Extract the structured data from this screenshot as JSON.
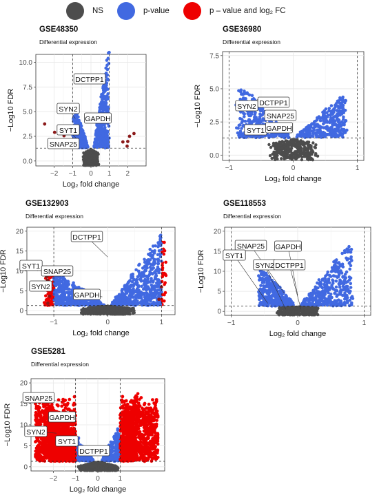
{
  "legend": {
    "items": [
      {
        "label": "NS",
        "color": "#4d4d4d"
      },
      {
        "label": "p-value",
        "color": "#4169e1"
      },
      {
        "label": "p – value and log₂ FC",
        "color": "#ee0000"
      }
    ]
  },
  "chart_data": [
    {
      "type": "scatter",
      "title": "GSE48350",
      "subtitle": "Differential expression",
      "xlabel": "Log₂ fold change",
      "ylabel": "−Log10 FDR",
      "xlim": [
        -3.0,
        3.0
      ],
      "ylim": [
        -0.5,
        10.8
      ],
      "xticks": [
        -2,
        -1,
        0,
        1,
        2
      ],
      "yticks": [
        "0.0",
        "2.5",
        "5.0",
        "7.5",
        "10.0"
      ],
      "fc_cutoff": 1,
      "fdr_cutoff": 1.3,
      "genes": [
        {
          "name": "DCTPP1",
          "x": 0.35,
          "y": 7.8
        },
        {
          "name": "SYN2",
          "x": -0.85,
          "y": 4.3
        },
        {
          "name": "GAPDH",
          "x": 0.4,
          "y": 3.9
        },
        {
          "name": "SYT1",
          "x": -0.75,
          "y": 2.2
        },
        {
          "name": "SNAP25",
          "x": -0.6,
          "y": 1.3
        }
      ]
    },
    {
      "type": "scatter",
      "title": "GSE36980",
      "subtitle": "Differential expression",
      "xlabel": "Log₂ fold change",
      "ylabel": "−Log10 FDR",
      "xlim": [
        -1.1,
        1.1
      ],
      "ylim": [
        -0.4,
        7.8
      ],
      "xticks": [
        -1,
        0,
        1
      ],
      "yticks": [
        "0.0",
        "2.5",
        "5.0",
        "7.5"
      ],
      "fc_cutoff": 1,
      "fdr_cutoff": 1.3,
      "genes": [
        {
          "name": "SYN2",
          "x": -0.55,
          "y": 4.2
        },
        {
          "name": "DCTPP1",
          "x": -0.1,
          "y": 4.0
        },
        {
          "name": "SNAP25",
          "x": -0.05,
          "y": 3.2
        },
        {
          "name": "SYT1",
          "x": -0.35,
          "y": 2.2
        },
        {
          "name": "GAPDH",
          "x": -0.05,
          "y": 2.3
        }
      ]
    },
    {
      "type": "scatter",
      "title": "GSE132903",
      "subtitle": "Differential expression",
      "xlabel": "Log₂ fold change",
      "ylabel": "−Log10 FDR",
      "xlim": [
        -1.5,
        1.25
      ],
      "ylim": [
        -1.0,
        21.0
      ],
      "xticks": [
        -1,
        0,
        1
      ],
      "yticks": [
        "0",
        "5",
        "10",
        "15",
        "20"
      ],
      "fc_cutoff": 1,
      "fdr_cutoff": 1.3,
      "genes": [
        {
          "name": "DCTPP1",
          "x": 0.0,
          "y": 13.5
        },
        {
          "name": "SYT1",
          "x": -1.3,
          "y": 10.0
        },
        {
          "name": "SNAP25",
          "x": -0.95,
          "y": 9.0
        },
        {
          "name": "SYN2",
          "x": -1.05,
          "y": 7.0
        },
        {
          "name": "GAPDH",
          "x": -0.1,
          "y": 3.5
        }
      ]
    },
    {
      "type": "scatter",
      "title": "GSE118553",
      "subtitle": "Differential expression",
      "xlabel": "Log₂ fold change",
      "ylabel": "−Log10 FDR",
      "xlim": [
        -1.1,
        1.1
      ],
      "ylim": [
        -1.0,
        21.0
      ],
      "xticks": [
        -1,
        0,
        1
      ],
      "yticks": [
        "0",
        "5",
        "10",
        "15",
        "20"
      ],
      "fc_cutoff": 1,
      "fdr_cutoff": 1.3,
      "genes": [
        {
          "name": "SNAP25",
          "x": -0.2,
          "y": 4.5
        },
        {
          "name": "GAPDH",
          "x": 0.0,
          "y": 4.0
        },
        {
          "name": "SYT1",
          "x": -0.45,
          "y": 2.0
        },
        {
          "name": "SYN2",
          "x": -0.18,
          "y": 0.5
        },
        {
          "name": "DCTPP1",
          "x": 0.05,
          "y": 0.5
        }
      ]
    },
    {
      "type": "scatter",
      "title": "GSE5281",
      "subtitle": "Differential expression",
      "xlabel": "Log₂ fold change",
      "ylabel": "−Log10 FDR",
      "xlim": [
        -3.0,
        3.0
      ],
      "ylim": [
        -1.0,
        21.0
      ],
      "xticks": [
        -2,
        -1,
        0,
        1
      ],
      "yticks": [
        "0",
        "5",
        "10",
        "15",
        "20"
      ],
      "fc_cutoff": 1,
      "fdr_cutoff": 1.3,
      "genes": [
        {
          "name": "SNAP25",
          "x": -1.6,
          "y": 15.5
        },
        {
          "name": "GAPDH",
          "x": -1.3,
          "y": 11.5
        },
        {
          "name": "SYN2",
          "x": -1.85,
          "y": 8.0
        },
        {
          "name": "SYT1",
          "x": -0.9,
          "y": 6.5
        },
        {
          "name": "DCTPP1",
          "x": 0.0,
          "y": 4.5
        }
      ]
    }
  ]
}
